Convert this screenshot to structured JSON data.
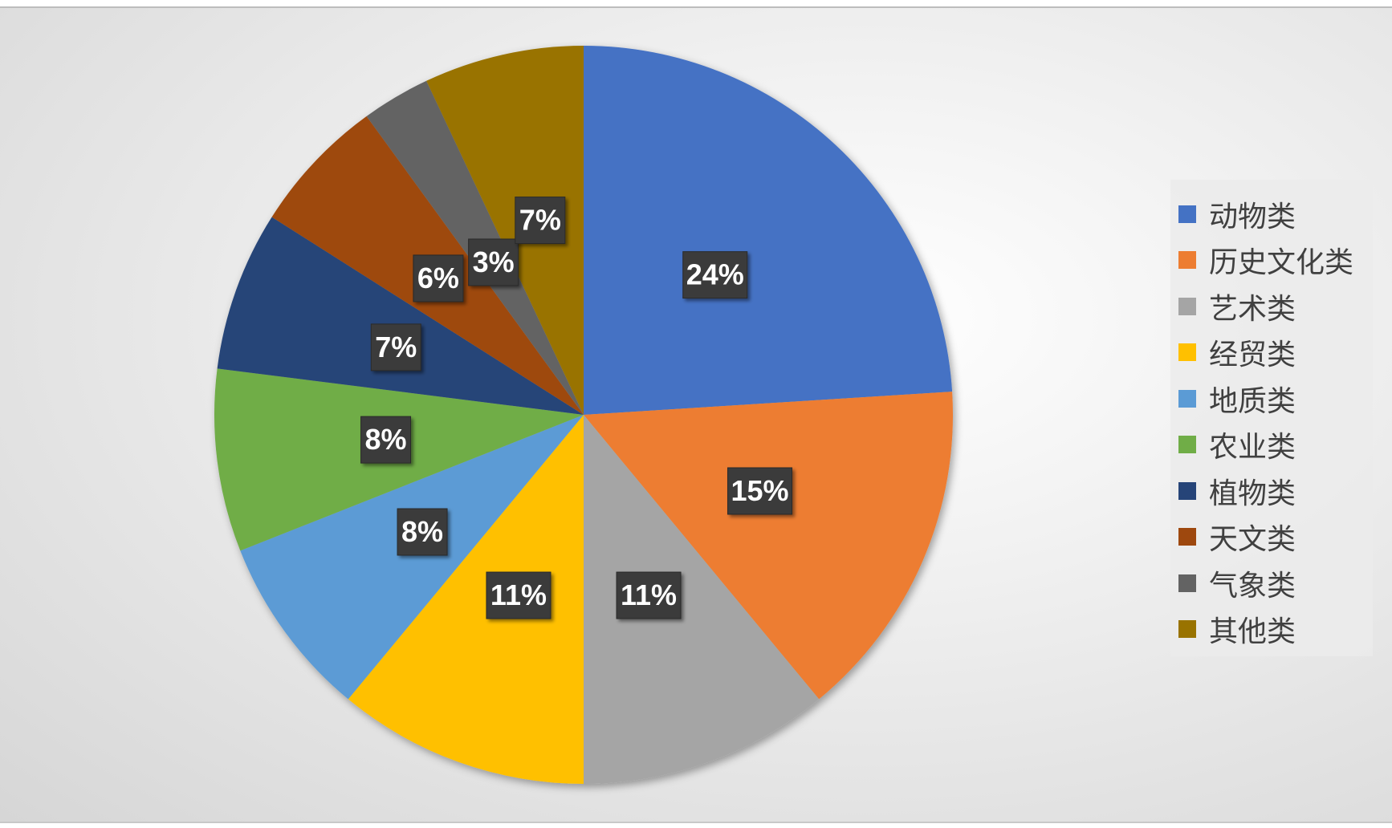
{
  "chart_data": {
    "type": "pie",
    "title": "",
    "labels": [
      "动物类",
      "历史文化类",
      "艺术类",
      "经贸类",
      "地质类",
      "农业类",
      "植物类",
      "天文类",
      "气象类",
      "其他类"
    ],
    "values": [
      24,
      15,
      11,
      11,
      8,
      8,
      7,
      6,
      3,
      7
    ],
    "value_labels": [
      "24%",
      "15%",
      "11%",
      "11%",
      "8%",
      "8%",
      "7%",
      "6%",
      "3%",
      "7%"
    ],
    "colors": [
      "#4472C4",
      "#ED7D31",
      "#A5A5A5",
      "#FFC000",
      "#5B9BD5",
      "#70AD47",
      "#264478",
      "#9E480E",
      "#636363",
      "#997300"
    ],
    "legend_position": "right",
    "start_angle_deg": 0,
    "direction": "clockwise"
  }
}
